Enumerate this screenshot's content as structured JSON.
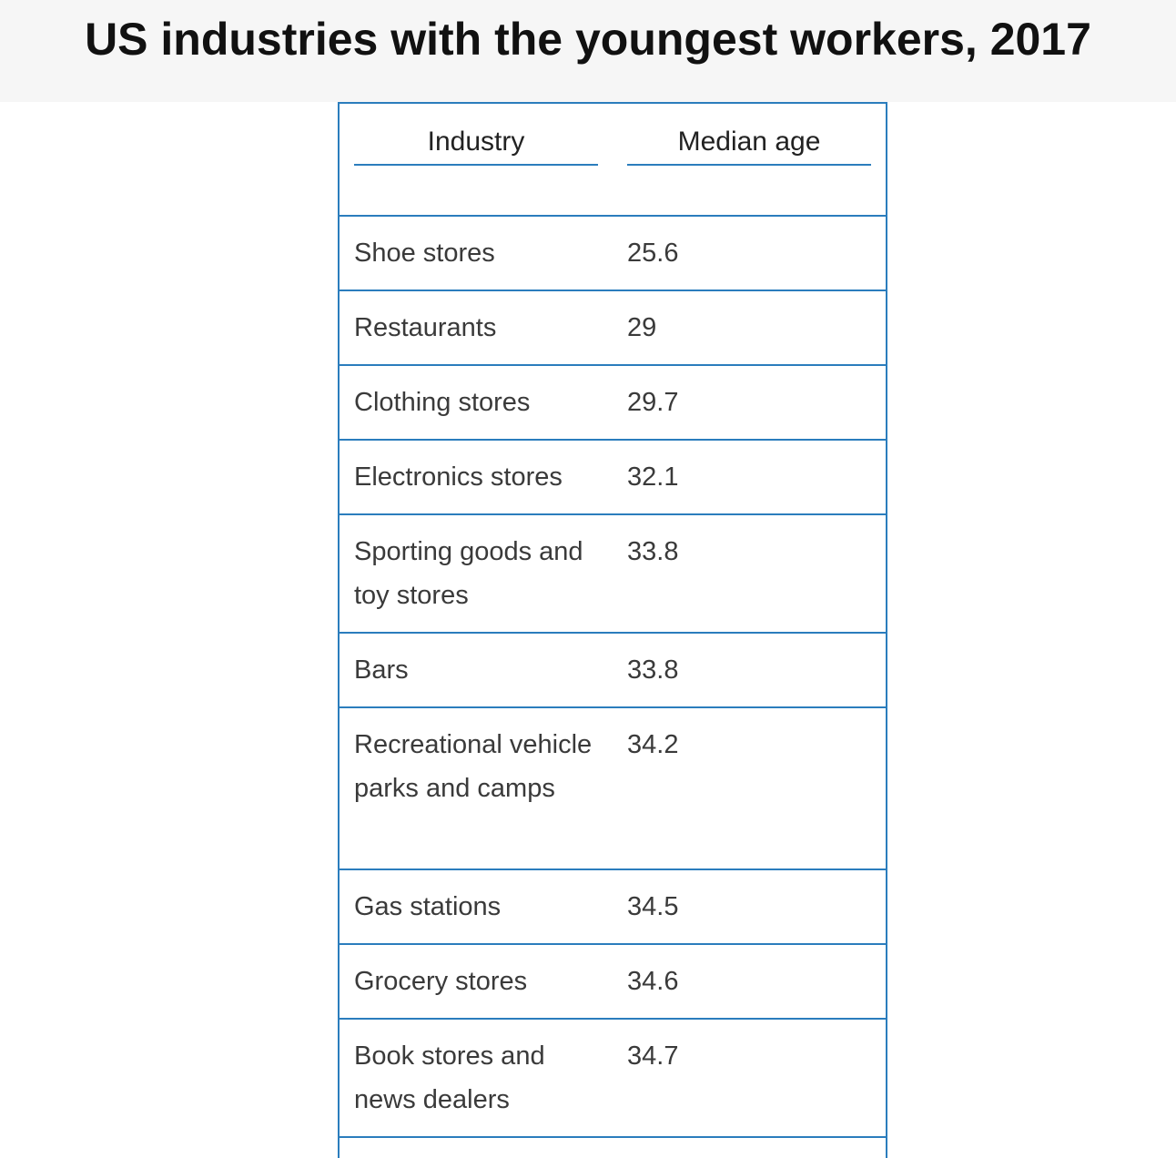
{
  "chart_data": {
    "type": "table",
    "title": "US industries with the youngest workers, 2017",
    "columns": [
      "Industry",
      "Median age"
    ],
    "rows": [
      {
        "industry": "Shoe stores",
        "median_age": "25.6"
      },
      {
        "industry": "Restaurants",
        "median_age": "29"
      },
      {
        "industry": "Clothing stores",
        "median_age": "29.7"
      },
      {
        "industry": "Electronics stores",
        "median_age": "32.1"
      },
      {
        "industry": "Sporting goods and toy stores",
        "median_age": "33.8"
      },
      {
        "industry": "Bars",
        "median_age": "33.8"
      },
      {
        "industry": "Recreational vehicle parks and camps",
        "median_age": "34.2"
      },
      {
        "industry": "Gas stations",
        "median_age": "34.5"
      },
      {
        "industry": "Grocery stores",
        "median_age": "34.6"
      },
      {
        "industry": "Book stores and news dealers",
        "median_age": "34.7"
      }
    ],
    "accent_color": "#2b7dbd"
  }
}
